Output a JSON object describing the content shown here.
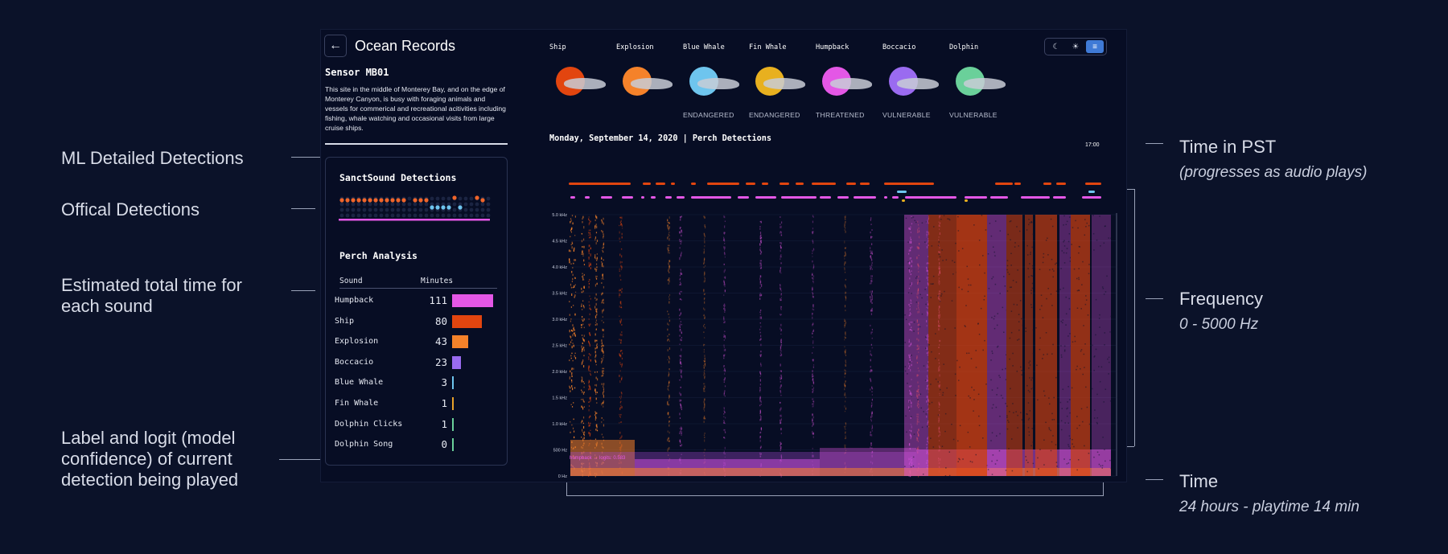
{
  "annotations": {
    "left": [
      {
        "label": "ML Detailed Detections"
      },
      {
        "label": "Offical Detections"
      },
      {
        "label": "Estimated total time for each sound"
      },
      {
        "label": "Label and logit (model confidence) of current detection being played"
      }
    ],
    "right": [
      {
        "label": "Time in PST",
        "sub": "(progresses as audio plays)"
      },
      {
        "label": "Frequency",
        "sub": "0 - 5000 Hz"
      },
      {
        "label": "Time",
        "sub": "24 hours - playtime 14 min"
      }
    ]
  },
  "app": {
    "title": "Ocean Records",
    "back_icon": "←",
    "sensor_name": "Sensor MB01",
    "description": "This site in the middle of Monterey Bay, and on the edge of Monterey Canyon, is busy with foraging animals and vessels for commerical and recreational acitivities including fishing, whale watching and occasional visits from large cruise ships.",
    "official_title": "SanctSound Detections",
    "analysis_title": "Perch Analysis",
    "table_headers": {
      "sound": "Sound",
      "minutes": "Minutes"
    },
    "rows": [
      {
        "name": "Humpback",
        "minutes": "111",
        "color": "#e457e6"
      },
      {
        "name": "Ship",
        "minutes": "80",
        "color": "#e2450f"
      },
      {
        "name": "Explosion",
        "minutes": "43",
        "color": "#f5822a"
      },
      {
        "name": "Boccacio",
        "minutes": "23",
        "color": "#9a6bf0"
      },
      {
        "name": "Blue Whale",
        "minutes": "3",
        "color": "#6ec5ee"
      },
      {
        "name": "Fin Whale",
        "minutes": "1",
        "color": "#e8a12a"
      },
      {
        "name": "Dolphin Clicks",
        "minutes": "1",
        "color": "#6ad09a"
      },
      {
        "name": "Dolphin Song",
        "minutes": "0",
        "color": "#6ad09a"
      }
    ],
    "species": [
      {
        "name": "Ship",
        "status": "",
        "color": "#e2450f"
      },
      {
        "name": "Explosion",
        "status": "",
        "color": "#f5822a"
      },
      {
        "name": "Blue Whale",
        "status": "ENDANGERED",
        "color": "#6ec5ee"
      },
      {
        "name": "Fin Whale",
        "status": "ENDANGERED",
        "color": "#e8b01f"
      },
      {
        "name": "Humpback",
        "status": "THREATENED",
        "color": "#e457e6"
      },
      {
        "name": "Boccacio",
        "status": "VULNERABLE",
        "color": "#9a6bf0"
      },
      {
        "name": "Dolphin",
        "status": "VULNERABLE",
        "color": "#6ad09a"
      }
    ],
    "toggle": {
      "dark": "☾",
      "light": "☀",
      "menu": "≡"
    },
    "date_label": "Monday, September 14, 2020 | Perch Detections",
    "time_label": "17:00",
    "freq_ticks": [
      "5.0 kHz",
      "4.5 kHz",
      "4.0 kHz",
      "3.5 kHz",
      "3.0 kHz",
      "2.5 kHz",
      "2.0 kHz",
      "1.5 kHz",
      "1.0 kHz",
      "500 Hz",
      "0 Hz"
    ],
    "logit_label": "humpback → logits: 0.583"
  }
}
